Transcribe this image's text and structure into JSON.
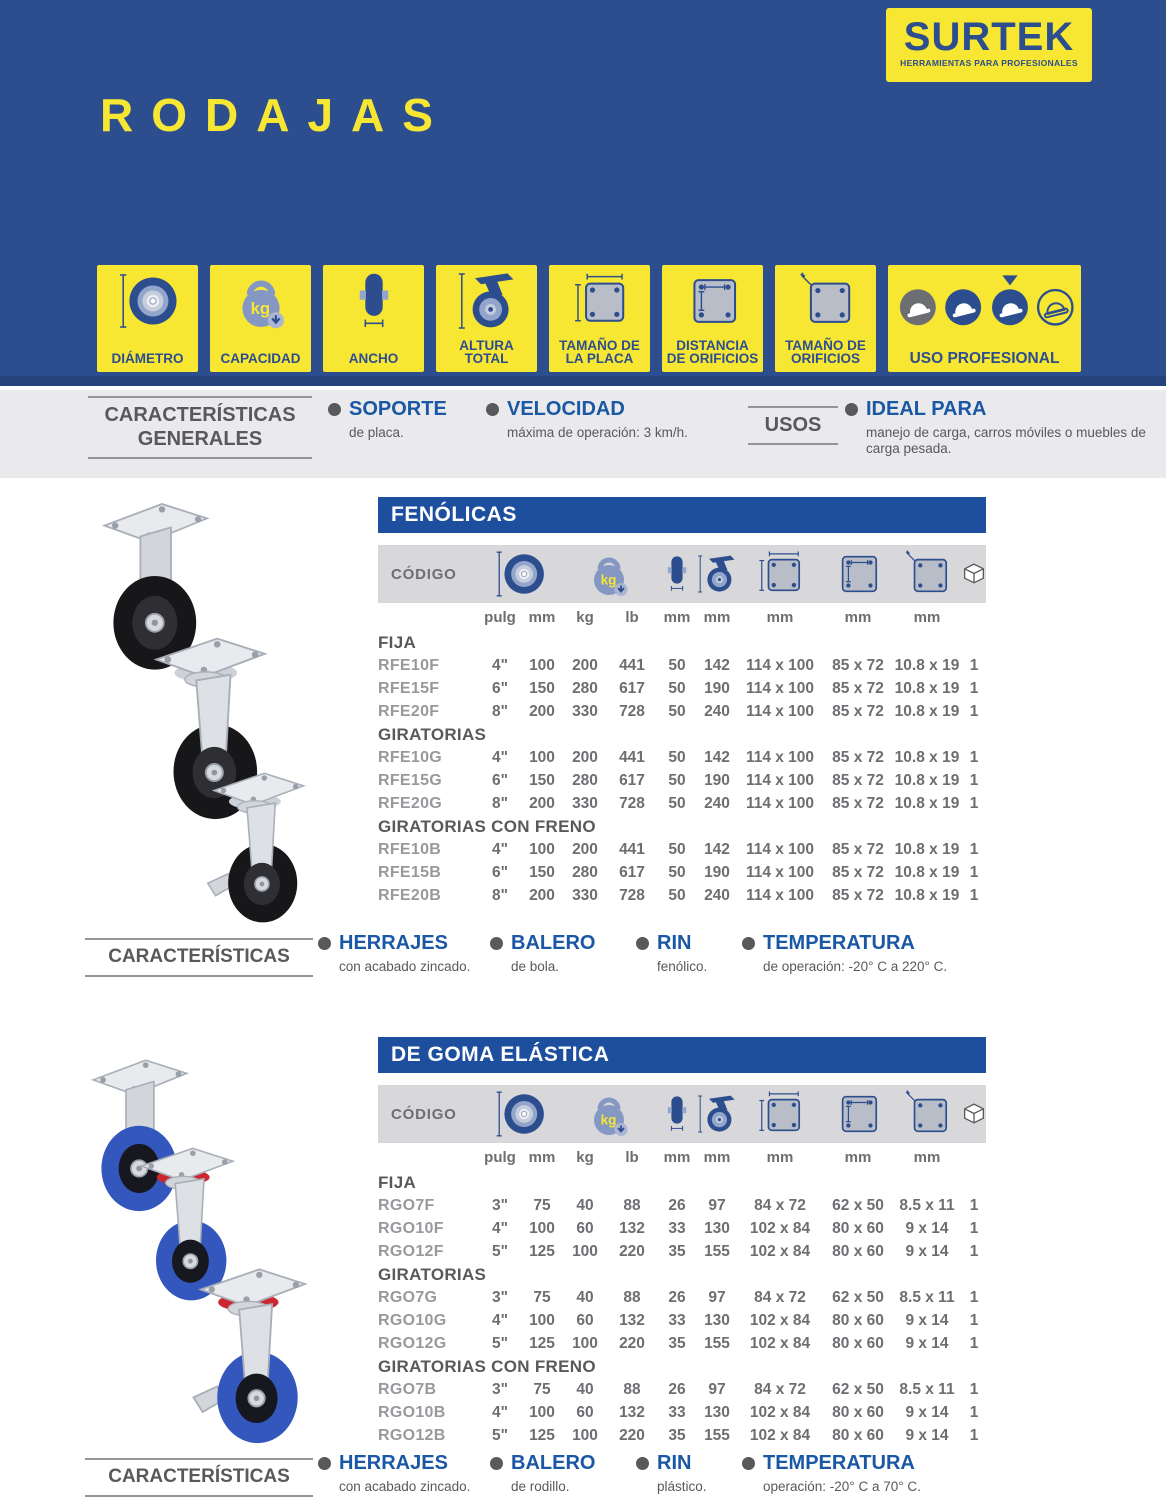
{
  "colors": {
    "header_blue": "#2d4e8e",
    "accent_yellow": "#f7e733",
    "table_bar_blue": "#1d4f9e",
    "feature_label_blue": "#1a57a5",
    "band_gray": "#eaeaec",
    "table_head_gray": "#d8d8da",
    "text_dark_gray": "#58595b",
    "text_mid_gray": "#6d6e71",
    "text_light_gray": "#97999c"
  },
  "brand": {
    "name": "SURTEK",
    "tagline": "HERRAMIENTAS PARA PROFESIONALES"
  },
  "page_title": "RODAJAS",
  "spec_icons": [
    {
      "label": "DIÁMETRO",
      "icon": "wheel-diameter-icon"
    },
    {
      "label": "CAPACIDAD",
      "icon": "capacity-kg-icon"
    },
    {
      "label": "ANCHO",
      "icon": "width-icon"
    },
    {
      "label": "ALTURA TOTAL",
      "icon": "total-height-icon"
    },
    {
      "label": "TAMAÑO DE LA PLACA",
      "icon": "plate-size-icon"
    },
    {
      "label": "DISTANCIA DE ORIFICIOS",
      "icon": "hole-distance-icon"
    },
    {
      "label": "TAMAÑO DE ORIFICIOS",
      "icon": "hole-size-icon"
    },
    {
      "label": "USO PROFESIONAL",
      "icon": "professional-use-icon"
    }
  ],
  "general": {
    "title": "CARACTERÍSTICAS GENERALES",
    "items": [
      {
        "label": "SOPORTE",
        "description": "de placa."
      },
      {
        "label": "VELOCIDAD",
        "description": "máxima de operación: 3 km/h."
      }
    ],
    "usos_label": "USOS",
    "ideal": {
      "label": "IDEAL PARA",
      "description": "manejo de carga, carros móviles o muebles de carga pesada."
    }
  },
  "tables": [
    {
      "title": "FENÓLICAS",
      "code_label": "CÓDIGO",
      "units": [
        "pulg",
        "mm",
        "kg",
        "lb",
        "mm",
        "mm",
        "mm",
        "mm",
        "mm"
      ],
      "groups": [
        {
          "name": "FIJA",
          "rows": [
            {
              "code": "RFE10F",
              "values": [
                "4\"",
                "100",
                "200",
                "441",
                "50",
                "142",
                "114 x 100",
                "85 x 72",
                "10.8 x 19",
                "1"
              ]
            },
            {
              "code": "RFE15F",
              "values": [
                "6\"",
                "150",
                "280",
                "617",
                "50",
                "190",
                "114 x 100",
                "85 x 72",
                "10.8 x 19",
                "1"
              ]
            },
            {
              "code": "RFE20F",
              "values": [
                "8\"",
                "200",
                "330",
                "728",
                "50",
                "240",
                "114 x 100",
                "85 x 72",
                "10.8 x 19",
                "1"
              ]
            }
          ]
        },
        {
          "name": "GIRATORIAS",
          "rows": [
            {
              "code": "RFE10G",
              "values": [
                "4\"",
                "100",
                "200",
                "441",
                "50",
                "142",
                "114 x 100",
                "85 x 72",
                "10.8 x 19",
                "1"
              ]
            },
            {
              "code": "RFE15G",
              "values": [
                "6\"",
                "150",
                "280",
                "617",
                "50",
                "190",
                "114 x 100",
                "85 x 72",
                "10.8 x 19",
                "1"
              ]
            },
            {
              "code": "RFE20G",
              "values": [
                "8\"",
                "200",
                "330",
                "728",
                "50",
                "240",
                "114 x 100",
                "85 x 72",
                "10.8 x 19",
                "1"
              ]
            }
          ]
        },
        {
          "name": "GIRATORIAS CON FRENO",
          "rows": [
            {
              "code": "RFE10B",
              "values": [
                "4\"",
                "100",
                "200",
                "441",
                "50",
                "142",
                "114 x 100",
                "85 x 72",
                "10.8 x 19",
                "1"
              ]
            },
            {
              "code": "RFE15B",
              "values": [
                "6\"",
                "150",
                "280",
                "617",
                "50",
                "190",
                "114 x 100",
                "85 x 72",
                "10.8 x 19",
                "1"
              ]
            },
            {
              "code": "RFE20B",
              "values": [
                "8\"",
                "200",
                "330",
                "728",
                "50",
                "240",
                "114 x 100",
                "85 x 72",
                "10.8 x 19",
                "1"
              ]
            }
          ]
        }
      ],
      "features": {
        "title": "CARACTERÍSTICAS",
        "items": [
          {
            "label": "HERRAJES",
            "description": "con acabado zincado."
          },
          {
            "label": "BALERO",
            "description": "de bola."
          },
          {
            "label": "RIN",
            "description": "fenólico."
          },
          {
            "label": "TEMPERATURA",
            "description": "de operación: -20° C a 220° C."
          }
        ]
      }
    },
    {
      "title": "DE GOMA ELÁSTICA",
      "code_label": "CÓDIGO",
      "units": [
        "pulg",
        "mm",
        "kg",
        "lb",
        "mm",
        "mm",
        "mm",
        "mm",
        "mm"
      ],
      "groups": [
        {
          "name": "FIJA",
          "rows": [
            {
              "code": "RGO7F",
              "values": [
                "3\"",
                "75",
                "40",
                "88",
                "26",
                "97",
                "84 x 72",
                "62 x 50",
                "8.5 x 11",
                "1"
              ]
            },
            {
              "code": "RGO10F",
              "values": [
                "4\"",
                "100",
                "60",
                "132",
                "33",
                "130",
                "102 x 84",
                "80 x 60",
                "9 x 14",
                "1"
              ]
            },
            {
              "code": "RGO12F",
              "values": [
                "5\"",
                "125",
                "100",
                "220",
                "35",
                "155",
                "102 x 84",
                "80 x 60",
                "9 x 14",
                "1"
              ]
            }
          ]
        },
        {
          "name": "GIRATORIAS",
          "rows": [
            {
              "code": "RGO7G",
              "values": [
                "3\"",
                "75",
                "40",
                "88",
                "26",
                "97",
                "84 x 72",
                "62 x 50",
                "8.5 x 11",
                "1"
              ]
            },
            {
              "code": "RGO10G",
              "values": [
                "4\"",
                "100",
                "60",
                "132",
                "33",
                "130",
                "102 x 84",
                "80 x 60",
                "9 x 14",
                "1"
              ]
            },
            {
              "code": "RGO12G",
              "values": [
                "5\"",
                "125",
                "100",
                "220",
                "35",
                "155",
                "102 x 84",
                "80 x 60",
                "9 x 14",
                "1"
              ]
            }
          ]
        },
        {
          "name": "GIRATORIAS CON FRENO",
          "rows": [
            {
              "code": "RGO7B",
              "values": [
                "3\"",
                "75",
                "40",
                "88",
                "26",
                "97",
                "84 x 72",
                "62 x 50",
                "8.5 x 11",
                "1"
              ]
            },
            {
              "code": "RGO10B",
              "values": [
                "4\"",
                "100",
                "60",
                "132",
                "33",
                "130",
                "102 x 84",
                "80 x 60",
                "9 x 14",
                "1"
              ]
            },
            {
              "code": "RGO12B",
              "values": [
                "5\"",
                "125",
                "100",
                "220",
                "35",
                "155",
                "102 x 84",
                "80 x 60",
                "9 x 14",
                "1"
              ]
            }
          ]
        }
      ],
      "features": {
        "title": "CARACTERÍSTICAS",
        "items": [
          {
            "label": "HERRAJES",
            "description": "con acabado zincado."
          },
          {
            "label": "BALERO",
            "description": "de rodillo."
          },
          {
            "label": "RIN",
            "description": "plástico."
          },
          {
            "label": "TEMPERATURA",
            "description": "operación: -20° C a 70° C."
          }
        ]
      }
    }
  ]
}
